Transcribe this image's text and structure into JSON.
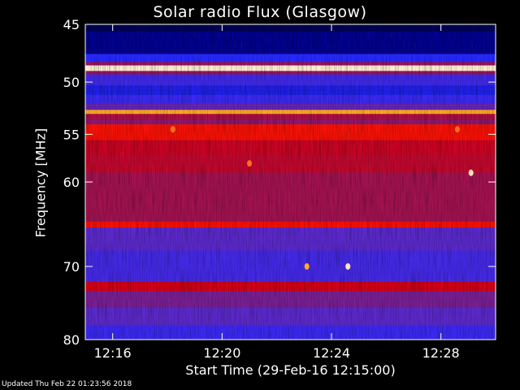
{
  "chart_data": {
    "type": "heatmap",
    "title": "Solar radio Flux (Glasgow)",
    "xlabel": "Start Time (29-Feb-16 12:15:00)",
    "ylabel": "Frequency [MHz]",
    "x_ticks": [
      {
        "value": 1.0,
        "label": "12:16"
      },
      {
        "value": 5.0,
        "label": "12:20"
      },
      {
        "value": 9.0,
        "label": "12:24"
      },
      {
        "value": 13.0,
        "label": "12:28"
      }
    ],
    "y_ticks": [
      45,
      50,
      55,
      60,
      70,
      80
    ],
    "xlim_minutes_after_start": [
      0,
      15
    ],
    "ylim_mhz": [
      45,
      80
    ],
    "y_scale": "log",
    "colormap": "black-blue-red-yellow-white",
    "bands": [
      {
        "f_low": 45.0,
        "f_high": 45.6,
        "level": 0.05
      },
      {
        "f_low": 45.6,
        "f_high": 47.5,
        "level": 0.12
      },
      {
        "f_low": 47.5,
        "f_high": 48.2,
        "level": 0.25
      },
      {
        "f_low": 48.2,
        "f_high": 48.5,
        "level": 0.5
      },
      {
        "f_low": 48.5,
        "f_high": 49.0,
        "level": 0.97
      },
      {
        "f_low": 49.0,
        "f_high": 49.3,
        "level": 0.5
      },
      {
        "f_low": 49.3,
        "f_high": 50.3,
        "level": 0.32
      },
      {
        "f_low": 50.3,
        "f_high": 51.2,
        "level": 0.22
      },
      {
        "f_low": 51.2,
        "f_high": 52.0,
        "level": 0.3
      },
      {
        "f_low": 52.0,
        "f_high": 52.6,
        "level": 0.42
      },
      {
        "f_low": 52.6,
        "f_high": 53.0,
        "level": 0.85
      },
      {
        "f_low": 53.0,
        "f_high": 53.5,
        "level": 0.55
      },
      {
        "f_low": 53.5,
        "f_high": 54.0,
        "level": 0.48
      },
      {
        "f_low": 54.0,
        "f_high": 55.6,
        "level": 0.7
      },
      {
        "f_low": 55.6,
        "f_high": 57.0,
        "level": 0.6
      },
      {
        "f_low": 57.0,
        "f_high": 59.0,
        "level": 0.58
      },
      {
        "f_low": 59.0,
        "f_high": 64.5,
        "level": 0.52
      },
      {
        "f_low": 64.5,
        "f_high": 65.2,
        "level": 0.7
      },
      {
        "f_low": 65.2,
        "f_high": 68.0,
        "level": 0.4
      },
      {
        "f_low": 68.0,
        "f_high": 72.0,
        "level": 0.33
      },
      {
        "f_low": 72.0,
        "f_high": 73.2,
        "level": 0.62
      },
      {
        "f_low": 73.2,
        "f_high": 75.5,
        "level": 0.45
      },
      {
        "f_low": 75.5,
        "f_high": 78.0,
        "level": 0.4
      },
      {
        "f_low": 78.0,
        "f_high": 80.0,
        "level": 0.3
      }
    ],
    "bursts": [
      {
        "t": 14.1,
        "f": 59.0,
        "level": 0.95
      },
      {
        "t": 3.2,
        "f": 54.5,
        "level": 0.8
      },
      {
        "t": 13.6,
        "f": 54.5,
        "level": 0.8
      },
      {
        "t": 9.6,
        "f": 70.0,
        "level": 0.95
      },
      {
        "t": 8.1,
        "f": 70.0,
        "level": 0.85
      },
      {
        "t": 6.0,
        "f": 58.0,
        "level": 0.8
      }
    ]
  },
  "footer": {
    "updated": "Updated Thu Feb 22 01:23:56 2018"
  }
}
